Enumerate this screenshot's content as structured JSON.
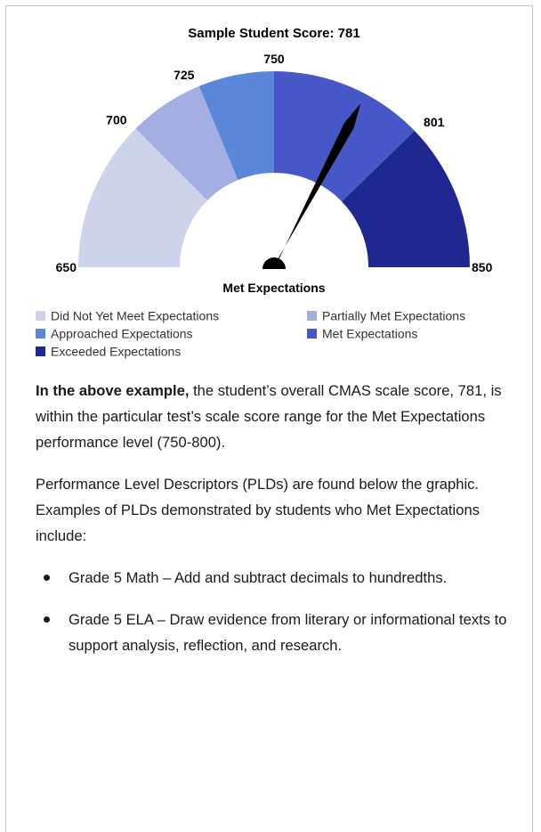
{
  "gauge": {
    "type": "gauge",
    "title": "Sample Student Score: 781",
    "value": 781,
    "value_label": "Met Expectations",
    "ticks": [
      650,
      700,
      725,
      750,
      801,
      850
    ],
    "bands": [
      {
        "name": "Did Not Yet Meet Expectations",
        "color": "#cdd3ea"
      },
      {
        "name": "Partially Met Expectations",
        "color": "#a3afe3"
      },
      {
        "name": "Approached Expectations",
        "color": "#5b87d9"
      },
      {
        "name": "Met Expectations",
        "color": "#4757c8"
      },
      {
        "name": "Exceeded Expectations",
        "color": "#1f2790"
      }
    ]
  },
  "paragraphs": [
    {
      "bold": "In the above example,",
      "text": " the student’s overall CMAS scale score, 781, is within the particular test’s scale score range for the Met Expectations performance level (750-800)."
    },
    {
      "text": "Performance Level Descriptors (PLDs) are found below the graphic. Examples of PLDs demonstrated by students who Met Expectations include:"
    }
  ],
  "bullets": [
    "Grade 5 Math – Add and subtract decimals to hundredths.",
    "Grade 5 ELA – Draw evidence from literary or informational texts to support analysis, reflection, and research."
  ]
}
